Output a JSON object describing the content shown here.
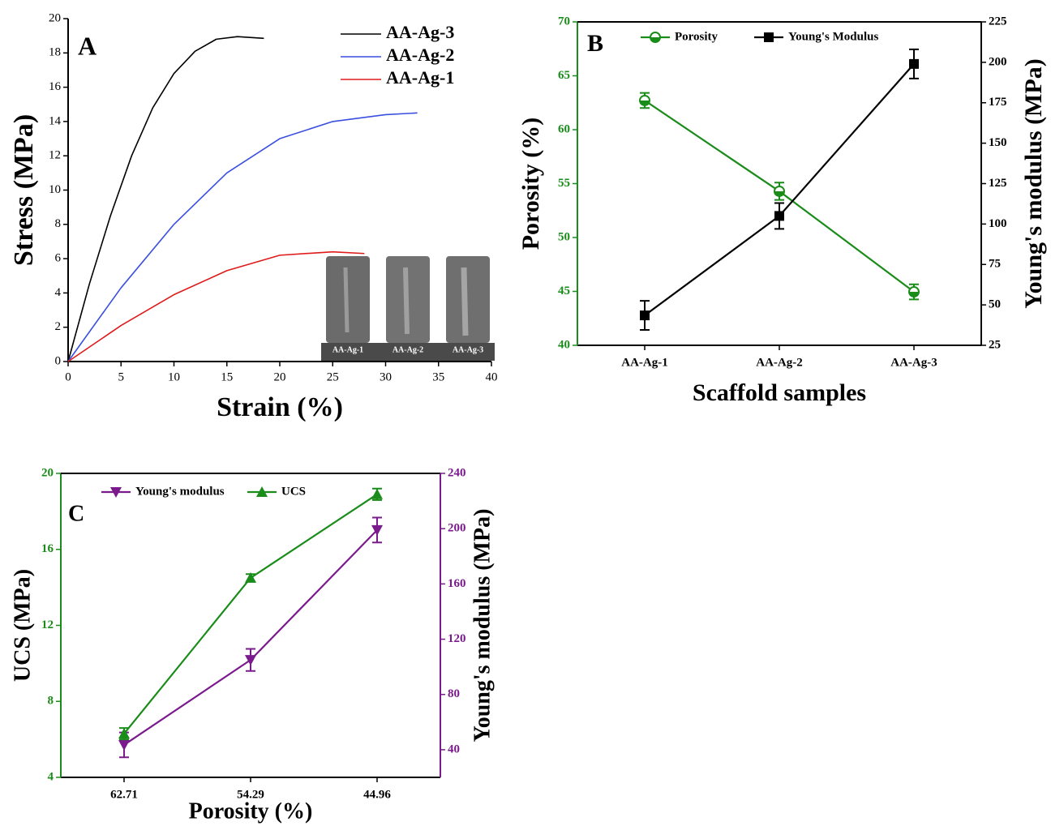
{
  "chart_data": [
    {
      "type": "line",
      "panel_label": "A",
      "xlabel": "Strain (%)",
      "ylabel": "Stress (MPa)",
      "xlim": [
        0,
        40
      ],
      "xticks": [
        0,
        5,
        10,
        15,
        20,
        25,
        30,
        35,
        40
      ],
      "ylim": [
        0,
        20
      ],
      "yticks": [
        0,
        2,
        4,
        6,
        8,
        10,
        12,
        14,
        16,
        18,
        20
      ],
      "legend": "upper right",
      "frame": false,
      "series": [
        {
          "name": "AA-Ag-3",
          "color": "#000000",
          "x": [
            0,
            2,
            4,
            6,
            8,
            10,
            12,
            14,
            16,
            18.5
          ],
          "values": [
            0,
            4.5,
            8.5,
            12,
            14.8,
            16.8,
            18.1,
            18.8,
            18.95,
            18.85
          ]
        },
        {
          "name": "AA-Ag-2",
          "color": "#3a4fe0",
          "x": [
            0,
            5,
            10,
            15,
            20,
            25,
            30,
            33
          ],
          "values": [
            0,
            4.3,
            8,
            11,
            13,
            14,
            14.4,
            14.5
          ]
        },
        {
          "name": "AA-Ag-1",
          "color": "#e01a1a",
          "x": [
            0,
            5,
            10,
            15,
            20,
            25,
            28
          ],
          "values": [
            0,
            2.1,
            3.9,
            5.3,
            6.2,
            6.4,
            6.3
          ]
        }
      ],
      "inset_labels": [
        "AA-Ag-1",
        "AA-Ag-2",
        "AA-Ag-3"
      ]
    },
    {
      "type": "line",
      "panel_label": "B",
      "xlabel": "Scaffold samples",
      "ylabel": "Porosity (%)",
      "y2label": "Young's modulus (MPa)",
      "categories": [
        "AA-Ag-1",
        "AA-Ag-2",
        "AA-Ag-3"
      ],
      "ylim": [
        40,
        70
      ],
      "yticks": [
        40,
        45,
        50,
        55,
        60,
        65,
        70
      ],
      "ycolor": "#1a8c1a",
      "y2lim": [
        25,
        225
      ],
      "y2ticks": [
        25,
        50,
        75,
        100,
        125,
        150,
        175,
        200,
        225
      ],
      "y2color": "#000000",
      "legend": "upper left",
      "frame": true,
      "series": [
        {
          "name": "Porosity",
          "color": "#1a8c1a",
          "marker": "circle",
          "values": [
            62.71,
            54.29,
            44.96
          ],
          "errors": [
            0.7,
            0.8,
            0.7
          ]
        },
        {
          "name": "Young's Modulus",
          "color": "#000000",
          "marker": "square",
          "axis": "y2",
          "values": [
            43.5,
            105,
            199
          ],
          "errors": [
            9,
            8,
            9
          ]
        }
      ]
    },
    {
      "type": "line",
      "panel_label": "C",
      "xlabel": "Porosity (%)",
      "ylabel": "UCS (MPa)",
      "y2label": "Young's modulus (MPa)",
      "categories": [
        "62.71",
        "54.29",
        "44.96"
      ],
      "ylim": [
        4,
        20
      ],
      "yticks": [
        4,
        8,
        12,
        16,
        20
      ],
      "ycolor": "#1a8c1a",
      "y2lim": [
        20,
        240
      ],
      "y2ticks": [
        40,
        80,
        120,
        160,
        200,
        240
      ],
      "y2color": "#7a1a8c",
      "legend": "upper left",
      "frame": true,
      "series": [
        {
          "name": "Young's modulus",
          "color": "#7a1a8c",
          "marker": "triangle-down",
          "axis": "y2",
          "values": [
            43.5,
            105,
            199
          ],
          "errors": [
            9,
            8,
            9
          ]
        },
        {
          "name": "UCS",
          "color": "#1a8c1a",
          "marker": "triangle-up",
          "values": [
            6.3,
            14.5,
            18.9
          ],
          "errors": [
            0.3,
            0.2,
            0.3
          ]
        }
      ]
    }
  ]
}
